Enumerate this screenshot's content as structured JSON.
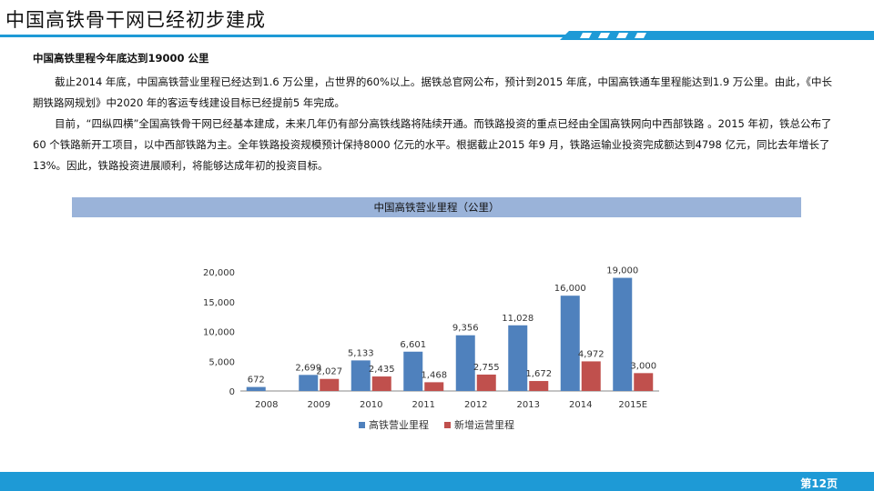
{
  "title": "中国高铁骨干网已经初步建成",
  "subheading": "中国高铁里程今年底达到19000 公里",
  "paragraph1": "截止2014 年底，中国高铁营业里程已经达到1.6 万公里，占世界的60%以上。据铁总官网公布，预计到2015 年底，中国高铁通车里程能达到1.9 万公里。由此，《中长期铁路网规划》中2020 年的客运专线建设目标已经提前5 年完成。",
  "paragraph2": "目前，“四纵四横”全国高铁骨干网已经基本建成，未来几年仍有部分高铁线路将陆续开通。而铁路投资的重点已经由全国高铁网向中西部铁路 。2015 年初，铁总公布了60 个铁路新开工项目，以中西部铁路为主。全年铁路投资规模预计保持8000 亿元的水平。根据截止2015 年9 月，铁路运输业投资完成额达到4798 亿元，同比去年增长了13%。因此，铁路投资进展顺利，将能够达成年初的投资目标。",
  "caption": "中国高铁营业里程（公里）",
  "page_number": "第12页",
  "colors": {
    "accent": "#1e9ad6",
    "caption_bg": "#9ab3d9",
    "series1": "#4f81bd",
    "series2": "#c0504d"
  },
  "chart_data": {
    "type": "bar",
    "categories": [
      "2008",
      "2009",
      "2010",
      "2011",
      "2012",
      "2013",
      "2014",
      "2015E"
    ],
    "series": [
      {
        "name": "高铁营业里程",
        "values": [
          672,
          2699,
          5133,
          6601,
          9356,
          11028,
          16000,
          19000
        ],
        "labels": [
          "672",
          "2,699",
          "5,133",
          "6,601",
          "9,356",
          "11,028",
          "16,000",
          "19,000"
        ]
      },
      {
        "name": "新增运营里程",
        "values": [
          null,
          2027,
          2435,
          1468,
          2755,
          1672,
          4972,
          3000
        ],
        "labels": [
          "",
          "2,027",
          "2,435",
          "1,468",
          "2,755",
          "1,672",
          "4,972",
          "3,000"
        ]
      }
    ],
    "y_ticks": [
      0,
      5000,
      10000,
      15000,
      20000
    ],
    "y_tick_labels": [
      "0",
      "5,000",
      "10,000",
      "15,000",
      "20,000"
    ],
    "ylim": [
      0,
      20000
    ],
    "grid": false,
    "legend_position": "bottom"
  }
}
